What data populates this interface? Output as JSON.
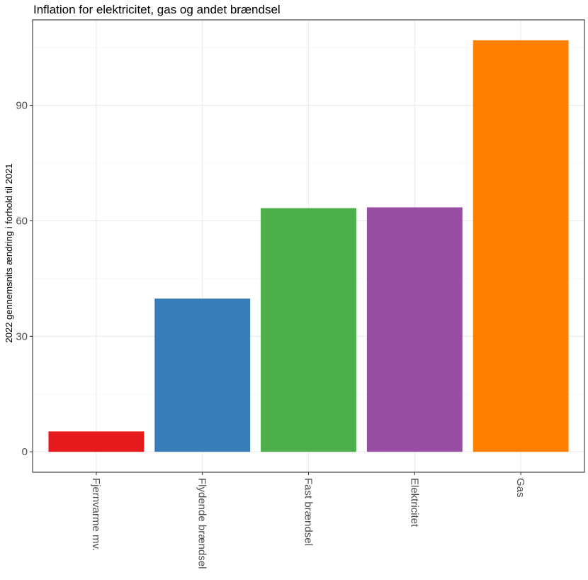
{
  "chart_data": {
    "type": "bar",
    "title": "Inflation for elektricitet, gas og andet brændsel",
    "xlabel": "",
    "ylabel": "2022 gennemsnits ændring i forhold til 2021",
    "categories": [
      "Fjernvarme mv.",
      "Flydende brændsel",
      "Fast brændsel",
      "Elektricitet",
      "Gas"
    ],
    "values": [
      5.3,
      39.8,
      63.3,
      63.5,
      106.9
    ],
    "colors": [
      "#e41a1c",
      "#377eb8",
      "#4daf4a",
      "#984ea3",
      "#ff7f00"
    ],
    "yticks": [
      0,
      30,
      60,
      90
    ],
    "ylim": [
      -5.3,
      112.2
    ],
    "grid": true,
    "legend": "none"
  }
}
